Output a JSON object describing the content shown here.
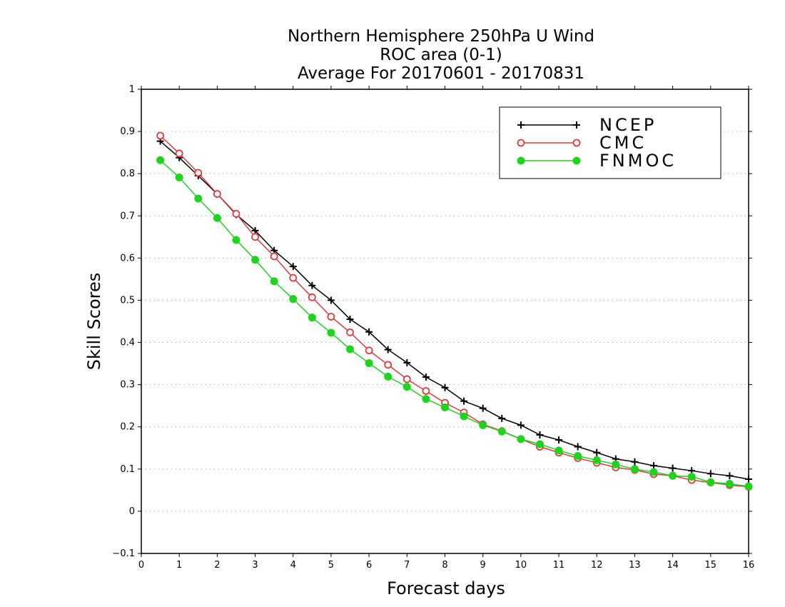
{
  "chart_data": {
    "type": "line",
    "title": [
      "Northern Hemisphere 250hPa U Wind",
      "ROC area (0-1)",
      "Average For 20170601 - 20170831"
    ],
    "xlabel": "Forecast days",
    "ylabel": "Skill Scores",
    "xlim": [
      0,
      16
    ],
    "ylim": [
      -0.1,
      1
    ],
    "xticks": [
      "0",
      "1",
      "2",
      "3",
      "4",
      "5",
      "6",
      "7",
      "8",
      "9",
      "10",
      "11",
      "12",
      "13",
      "14",
      "15",
      "16"
    ],
    "yticks": [
      "−0.1",
      "0",
      "0.1",
      "0.2",
      "0.3",
      "0.4",
      "0.5",
      "0.6",
      "0.7",
      "0.8",
      "0.9",
      "1"
    ],
    "grid": true,
    "legend_position": "top-right",
    "x": [
      0.5,
      1,
      1.5,
      2,
      2.5,
      3,
      3.5,
      4,
      4.5,
      5,
      5.5,
      6,
      6.5,
      7,
      7.5,
      8,
      8.5,
      9,
      9.5,
      10,
      10.5,
      11,
      11.5,
      12,
      12.5,
      13,
      13.5,
      14,
      14.5,
      15,
      15.5,
      16
    ],
    "series": [
      {
        "name": "NCEP",
        "color": "#000000",
        "marker": "plus",
        "values": [
          0.877,
          0.838,
          0.795,
          0.752,
          0.703,
          0.665,
          0.618,
          0.58,
          0.535,
          0.5,
          0.455,
          0.425,
          0.383,
          0.352,
          0.318,
          0.293,
          0.261,
          0.244,
          0.22,
          0.204,
          0.181,
          0.169,
          0.153,
          0.139,
          0.124,
          0.117,
          0.108,
          0.102,
          0.096,
          0.089,
          0.084,
          0.076
        ]
      },
      {
        "name": "CMC",
        "color": "#e03a3a",
        "marker": "open-circle",
        "values": [
          0.89,
          0.848,
          0.802,
          0.752,
          0.705,
          0.65,
          0.604,
          0.553,
          0.507,
          0.461,
          0.424,
          0.381,
          0.347,
          0.313,
          0.285,
          0.257,
          0.234,
          0.206,
          0.19,
          0.171,
          0.153,
          0.139,
          0.126,
          0.115,
          0.104,
          0.098,
          0.088,
          0.084,
          0.074,
          0.068,
          0.062,
          0.058
        ]
      },
      {
        "name": "FNMOC",
        "color": "#1ed41e",
        "marker": "filled-circle",
        "values": [
          0.832,
          0.791,
          0.741,
          0.695,
          0.643,
          0.596,
          0.545,
          0.503,
          0.459,
          0.423,
          0.384,
          0.351,
          0.319,
          0.295,
          0.266,
          0.246,
          0.225,
          0.204,
          0.189,
          0.171,
          0.159,
          0.144,
          0.131,
          0.121,
          0.111,
          0.1,
          0.093,
          0.084,
          0.082,
          0.069,
          0.065,
          0.059
        ]
      }
    ]
  }
}
